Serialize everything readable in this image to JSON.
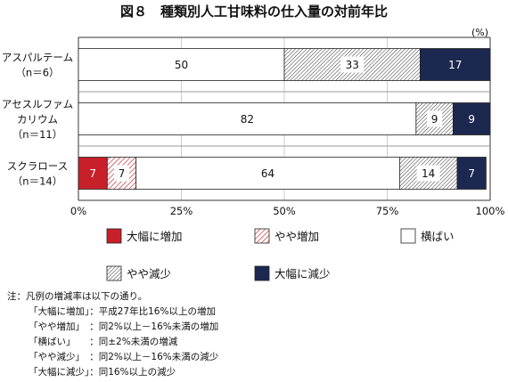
{
  "chart_data": {
    "type": "bar",
    "orientation": "horizontal",
    "stacked": true,
    "title": "図８　種類別人工甘味料の仕入量の対前年比",
    "unit": "(%)",
    "categories": [
      {
        "lines": [
          "アスパルテーム",
          "（n＝6）"
        ]
      },
      {
        "lines": [
          "アセスルファム",
          "カリウム",
          "（n＝11）"
        ]
      },
      {
        "lines": [
          "スクラロース",
          "（n＝14）"
        ]
      }
    ],
    "series": [
      {
        "name": "大幅に増加",
        "color": "#c8202a",
        "pattern": "solid",
        "label_color": "#ffffff",
        "values": [
          0,
          0,
          7
        ]
      },
      {
        "name": "やや増加",
        "color": "#c8202a",
        "pattern": "hatch-sparse",
        "label_color": "#111111",
        "values": [
          0,
          0,
          7
        ]
      },
      {
        "name": "横ばい",
        "color": "#ffffff",
        "pattern": "none",
        "label_color": "#111111",
        "values": [
          50,
          82,
          64
        ]
      },
      {
        "name": "やや減少",
        "color": "#333333",
        "pattern": "hatch-dense",
        "label_color": "#111111",
        "values": [
          33,
          9,
          14
        ]
      },
      {
        "name": "大幅に減少",
        "color": "#1d2850",
        "pattern": "solid",
        "label_color": "#ffffff",
        "values": [
          17,
          9,
          7
        ]
      }
    ],
    "xlim": [
      0,
      100
    ],
    "xticks": [
      "0%",
      "25%",
      "50%",
      "75%",
      "100%"
    ],
    "grid": true,
    "legend_position": "bottom"
  },
  "notes": {
    "heading": "注：凡例の増減率は以下の通り。",
    "rows": [
      "「大幅に増加」：平成27年比16%以上の増加",
      "「やや増加」　：同2%以上－16%未満の増加",
      "「横ばい」　　：同±2%未満の増減",
      "「やや減少」　：同2%以上－16%未満の減少",
      "「大幅に減少」：同16%以上の減少"
    ]
  }
}
